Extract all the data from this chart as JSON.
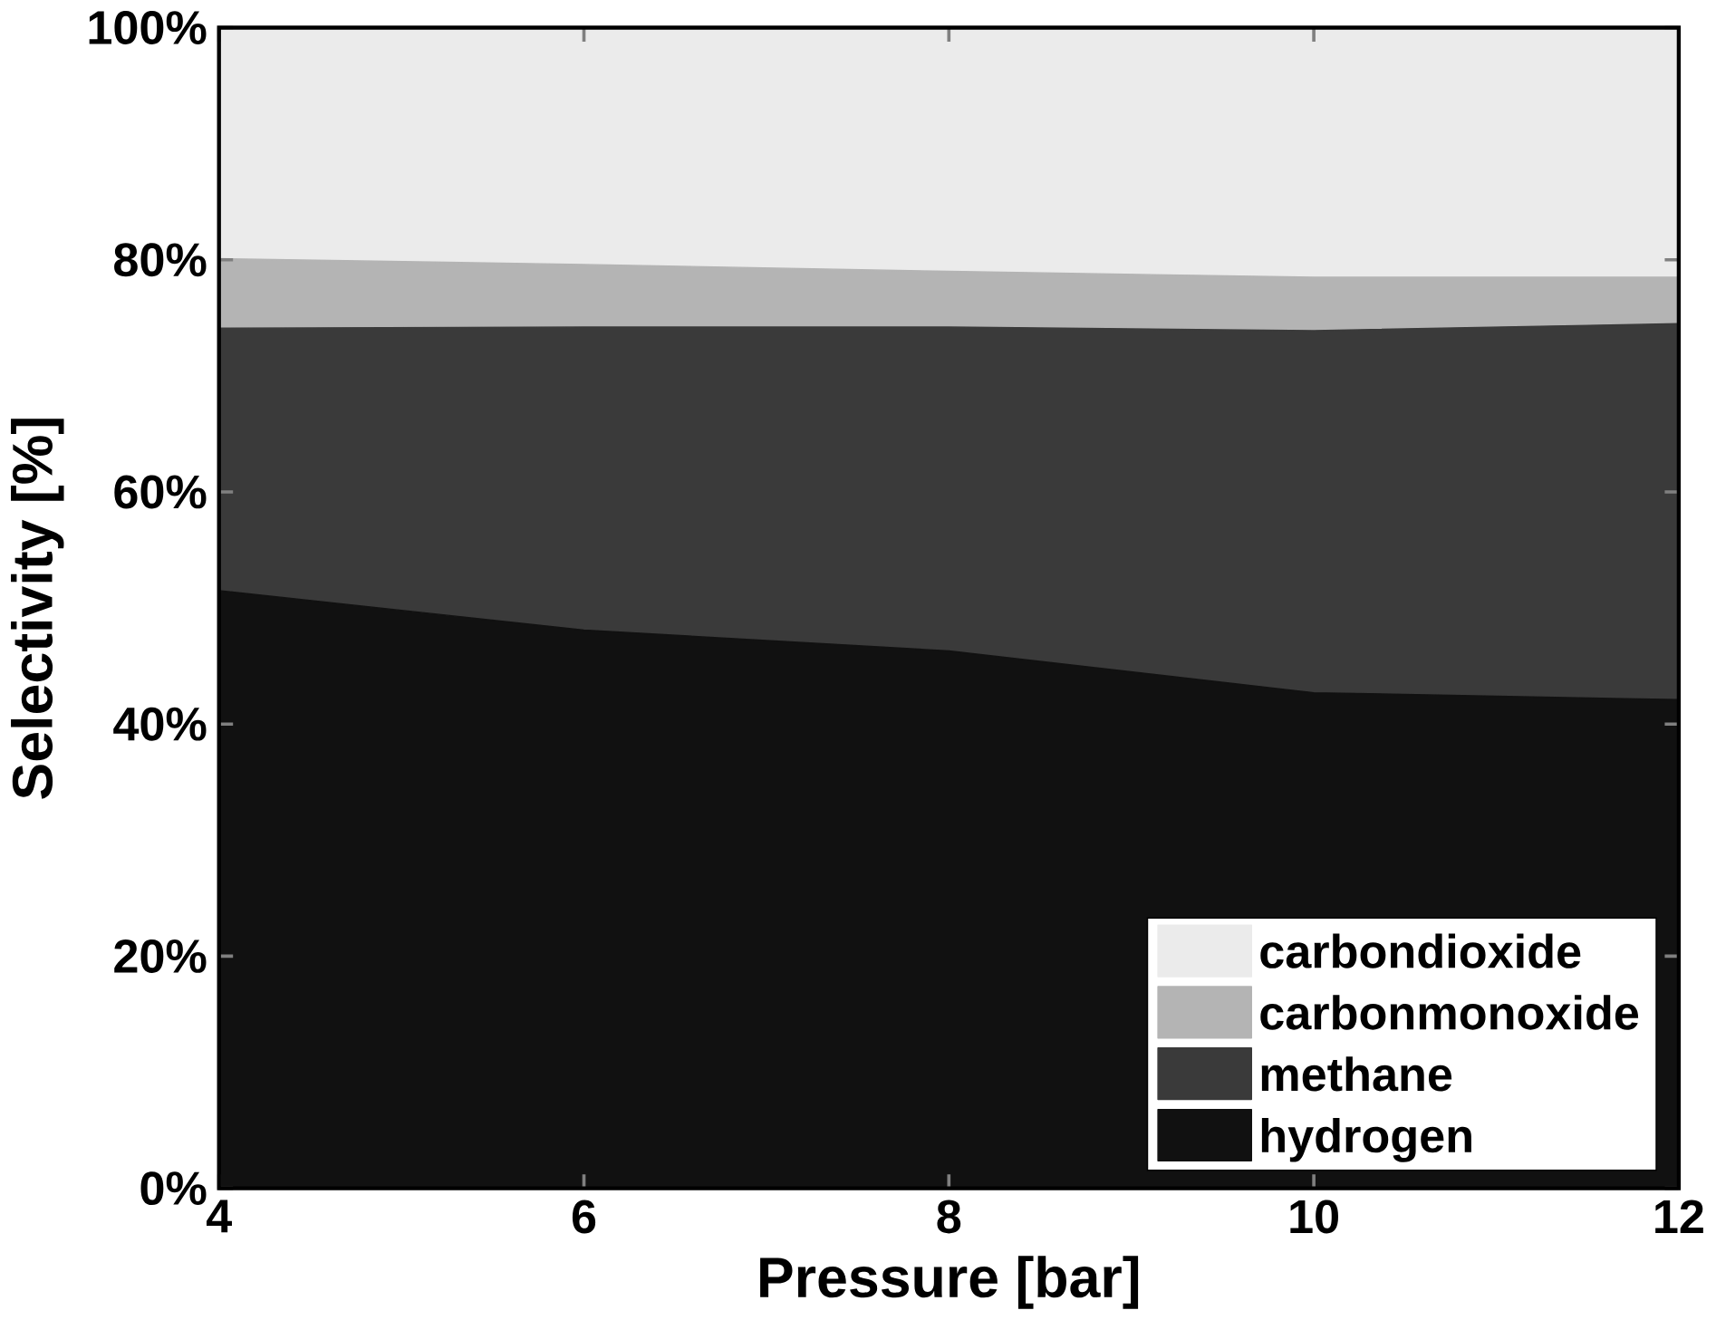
{
  "chart_data": {
    "type": "area",
    "stacked": true,
    "xlabel": "Pressure [bar]",
    "ylabel": "Selectivity [%]",
    "x": [
      4,
      6,
      8,
      10,
      12
    ],
    "series": [
      {
        "name": "hydrogen",
        "color": "#111111",
        "values": [
          51.5,
          48.1,
          46.3,
          42.7,
          42.1
        ]
      },
      {
        "name": "methane",
        "color": "#3a3a3a",
        "values": [
          22.6,
          26.1,
          27.9,
          31.2,
          32.4
        ]
      },
      {
        "name": "carbonmonoxide",
        "color": "#b4b4b4",
        "values": [
          6.0,
          5.4,
          4.8,
          4.6,
          4.0
        ]
      },
      {
        "name": "carbondioxide",
        "color": "#ebebeb",
        "values": [
          19.9,
          20.4,
          21.0,
          21.5,
          21.5
        ]
      }
    ],
    "xlim": [
      4,
      12
    ],
    "xticks": [
      4,
      6,
      8,
      10,
      12
    ],
    "ylim": [
      0,
      100
    ],
    "yticks": [
      {
        "value": 0,
        "label": "0%"
      },
      {
        "value": 20,
        "label": "20%"
      },
      {
        "value": 40,
        "label": "40%"
      },
      {
        "value": 60,
        "label": "60%"
      },
      {
        "value": 80,
        "label": "80%"
      },
      {
        "value": 100,
        "label": "100%"
      }
    ],
    "legend": "bottom right",
    "grid": false
  }
}
